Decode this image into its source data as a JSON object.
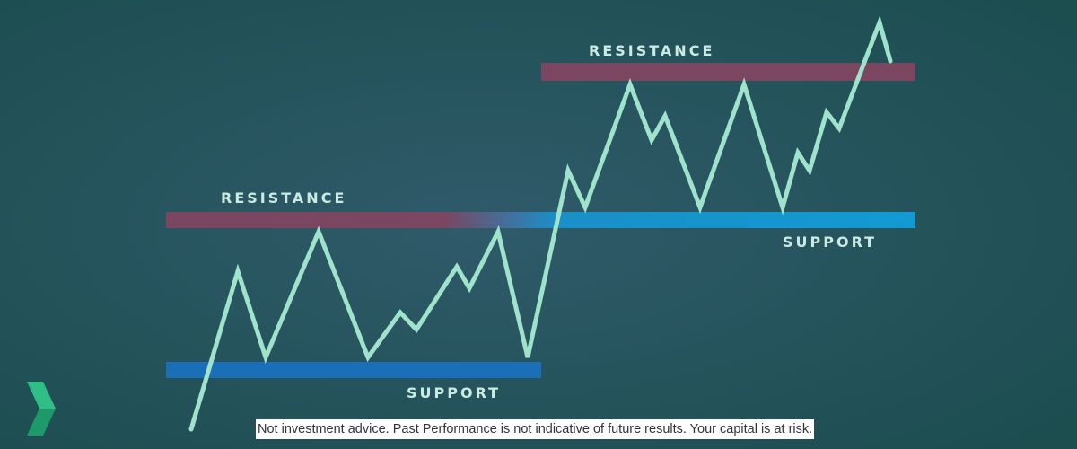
{
  "labels": {
    "resistance_left": "RESISTANCE",
    "resistance_right": "RESISTANCE",
    "support_left": "SUPPORT",
    "support_right": "SUPPORT"
  },
  "disclaimer": "Not investment advice. Past Performance is not indicative of future results. Your capital is at risk."
}
